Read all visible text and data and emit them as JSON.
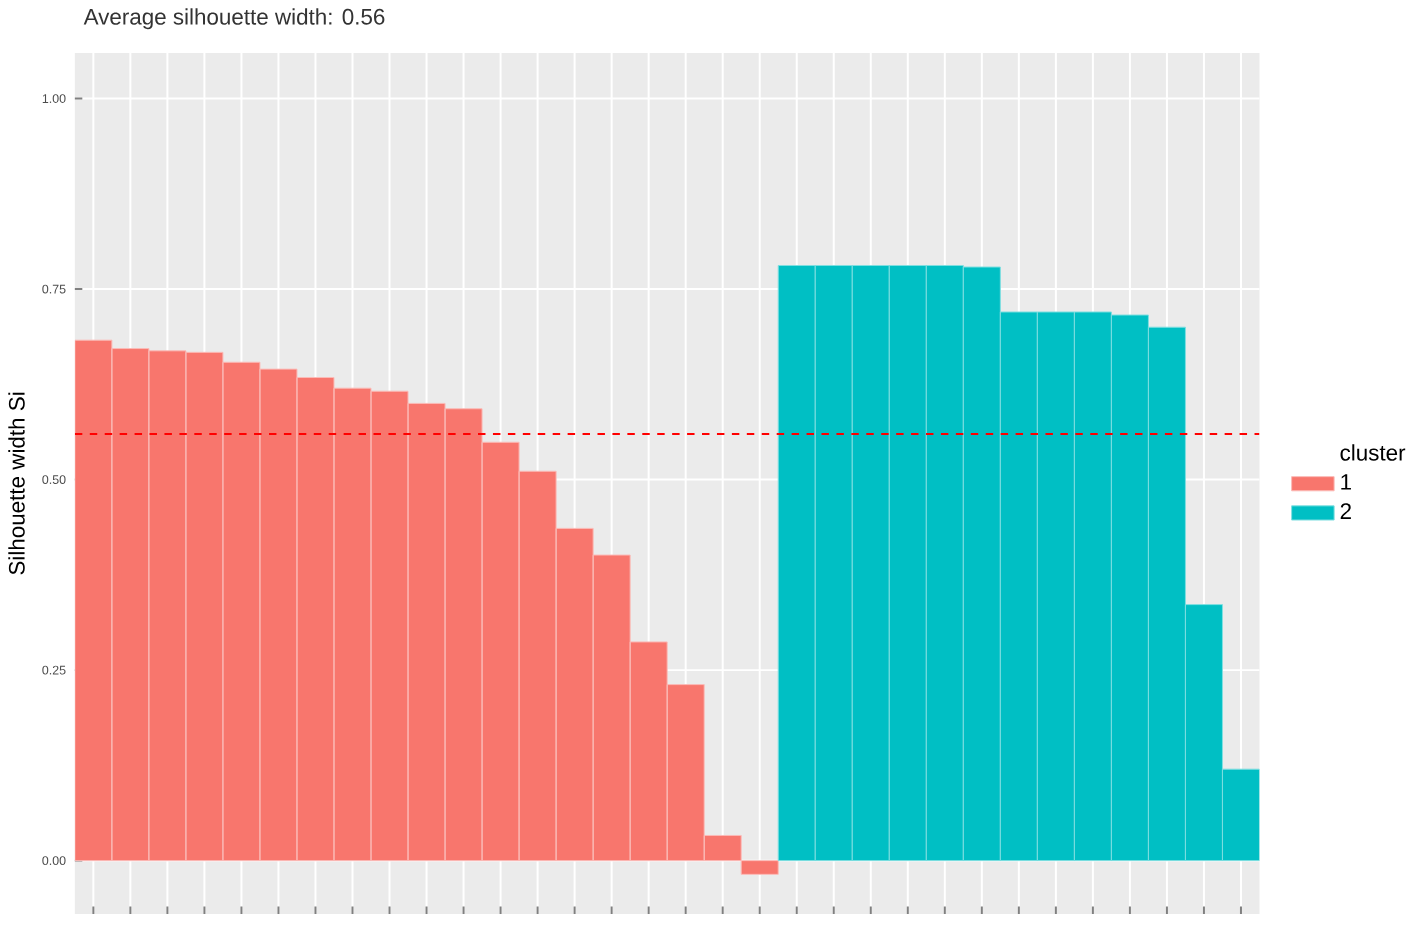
{
  "chart_data": {
    "type": "bar",
    "title": "Average silhouette width: 0.56",
    "ylabel": "Silhouette width Si",
    "legend_title": "cluster",
    "categories": [
      null,
      null,
      null,
      null,
      null,
      null,
      null,
      null,
      null,
      null,
      null,
      null,
      null,
      null,
      null,
      null,
      null,
      null,
      null,
      null,
      null,
      null,
      null,
      null,
      null,
      null,
      null,
      null,
      null,
      null,
      null,
      null
    ],
    "series": [
      {
        "name": "1",
        "color": "#f8766d",
        "values": [
          0.683,
          0.672,
          0.669,
          0.667,
          0.654,
          0.645,
          0.634,
          0.62,
          0.616,
          0.6,
          0.593,
          0.549,
          0.511,
          0.436,
          0.401,
          0.287,
          0.231,
          0.033,
          -0.018,
          null,
          null,
          null,
          null,
          null,
          null,
          null,
          null,
          null,
          null,
          null,
          null,
          null
        ]
      },
      {
        "name": "2",
        "color": "#00bfc4",
        "values": [
          null,
          null,
          null,
          null,
          null,
          null,
          null,
          null,
          null,
          null,
          null,
          null,
          null,
          null,
          null,
          null,
          null,
          null,
          null,
          0.781,
          0.781,
          0.781,
          0.781,
          0.781,
          0.779,
          0.72,
          0.72,
          0.72,
          0.716,
          0.7,
          0.336,
          0.12
        ]
      }
    ],
    "ylim": [
      -0.07,
      1.06
    ],
    "yticks": [
      {
        "value": 0,
        "label": "0.00"
      },
      {
        "value": 0.25,
        "label": "0.25"
      },
      {
        "value": 0.5,
        "label": "0.50"
      },
      {
        "value": 0.75,
        "label": "0.75"
      },
      {
        "value": 1,
        "label": "1.00"
      }
    ],
    "ref_lines": [
      {
        "axis": "y",
        "value": 0.56,
        "color": "#ff0000",
        "line_style": "dashed"
      }
    ],
    "grid": true,
    "legend": "right",
    "tick_labels": "y"
  }
}
